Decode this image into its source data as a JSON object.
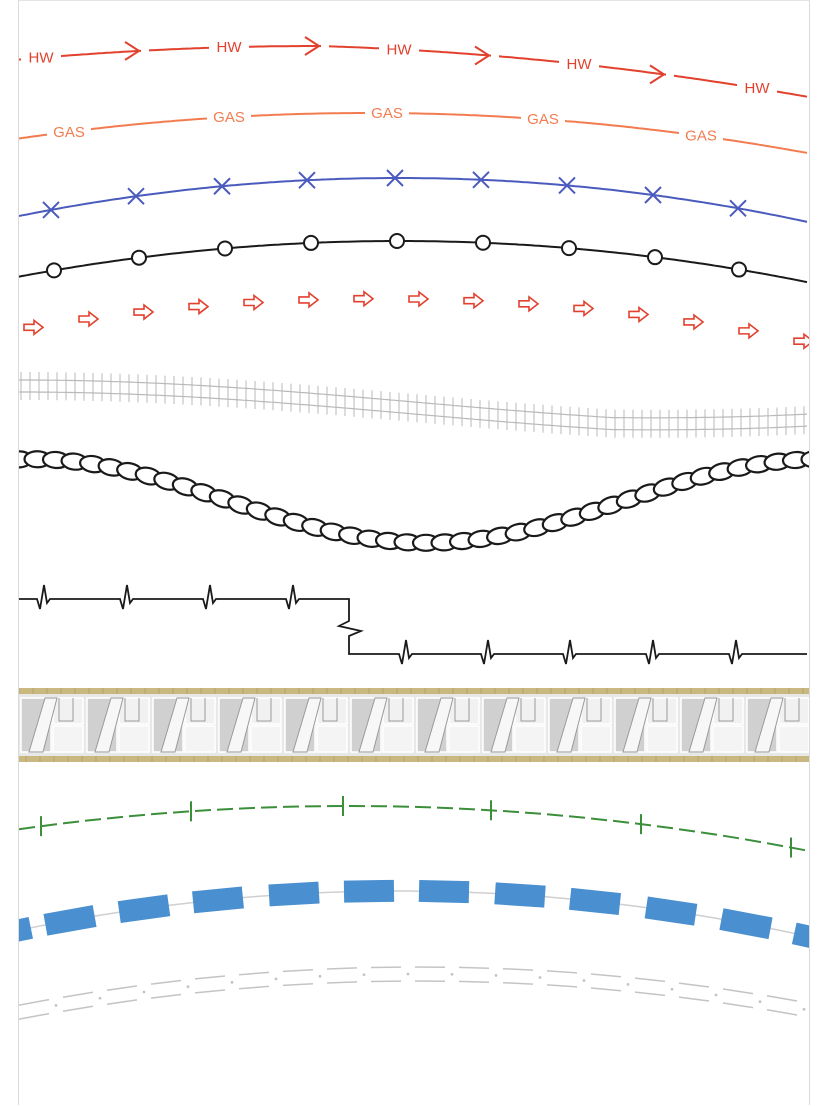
{
  "linetypes": {
    "hot_water": {
      "label": "HW",
      "color": "#e2412e"
    },
    "gas": {
      "label": "GAS",
      "color": "#f27c50"
    },
    "cross": {
      "color": "#4a5bbd"
    },
    "circle": {
      "color": "#1a1a1a"
    },
    "arrows": {
      "color": "#e2412e"
    },
    "railroad": {
      "color": "#b9b9b9"
    },
    "chain": {
      "color": "#1a1a1a"
    },
    "zigzag": {
      "color": "#1a1a1a"
    },
    "masonry": {
      "colors": [
        "#e8e8e8",
        "#d0d0d0",
        "#c9b980",
        "#9a9a9a"
      ]
    },
    "tick": {
      "color": "#3b8f3b"
    },
    "blue_dash": {
      "color": "#4a8fd0"
    },
    "ghost_dash": {
      "color": "#c4c4c4"
    }
  }
}
